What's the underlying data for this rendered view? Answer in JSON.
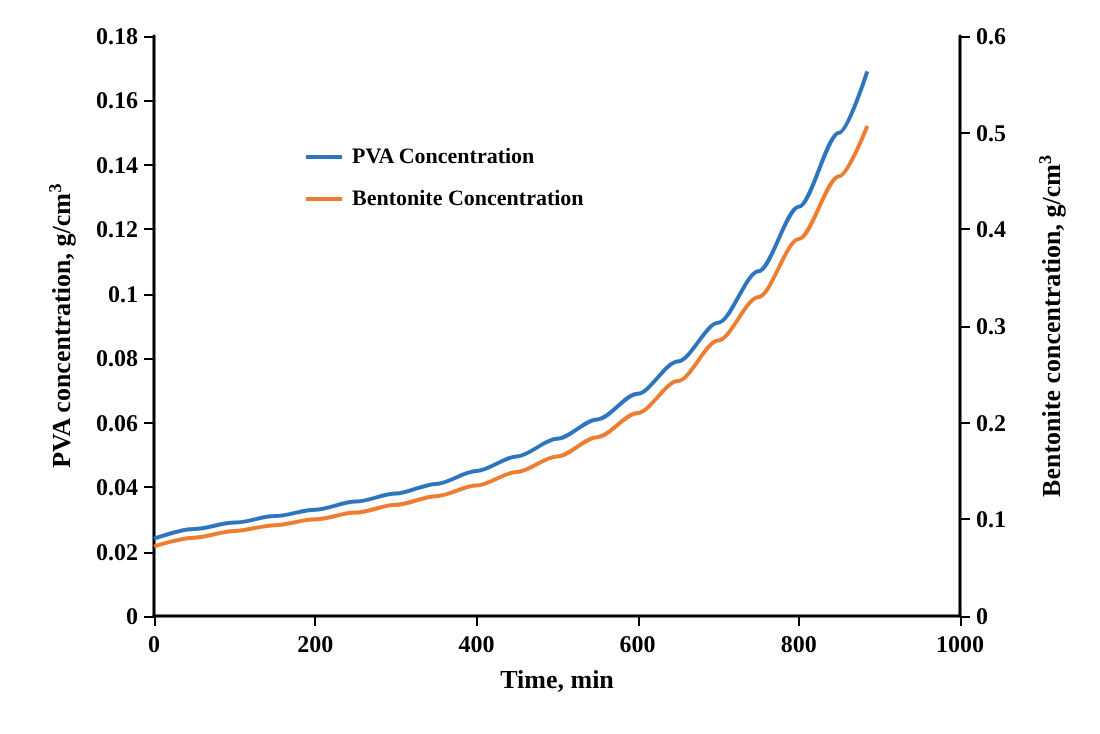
{
  "chart_data": {
    "type": "line",
    "xlabel": "Time, min",
    "ylabel": "PVA concentration, g/cm$^{3}$",
    "y2label": "Bentonite concentration, g/cm$^{3}$",
    "x": [
      0,
      50,
      100,
      150,
      200,
      250,
      300,
      350,
      400,
      450,
      500,
      550,
      600,
      650,
      700,
      750,
      800,
      850,
      885
    ],
    "series": [
      {
        "name": "PVA Concentration",
        "color": "#2e75c0",
        "values": [
          0.024,
          0.027,
          0.029,
          0.031,
          0.033,
          0.0355,
          0.038,
          0.041,
          0.045,
          0.0495,
          0.055,
          0.061,
          0.069,
          0.079,
          0.091,
          0.107,
          0.127,
          0.15,
          0.169
        ]
      },
      {
        "name": "Bentonite Concentration",
        "color": "#ed7d31",
        "axis": "y2",
        "values": [
          0.072,
          0.081,
          0.088,
          0.094,
          0.1,
          0.107,
          0.115,
          0.124,
          0.135,
          0.149,
          0.165,
          0.185,
          0.21,
          0.243,
          0.285,
          0.33,
          0.39,
          0.455,
          0.507
        ]
      }
    ],
    "xlim": [
      0,
      1000
    ],
    "xticks": [
      0,
      200,
      400,
      600,
      800,
      1000
    ],
    "ylim": [
      0,
      0.18
    ],
    "yticks": [
      0,
      0.02,
      0.04,
      0.06,
      0.08,
      0.1,
      0.12,
      0.14,
      0.16,
      0.18
    ],
    "y2lim": [
      0,
      0.6
    ],
    "y2ticks": [
      0,
      0.1,
      0.2,
      0.3,
      0.4,
      0.5,
      0.6
    ],
    "grid": false,
    "legend": "top left",
    "marker": "none",
    "line_style": "solid"
  }
}
